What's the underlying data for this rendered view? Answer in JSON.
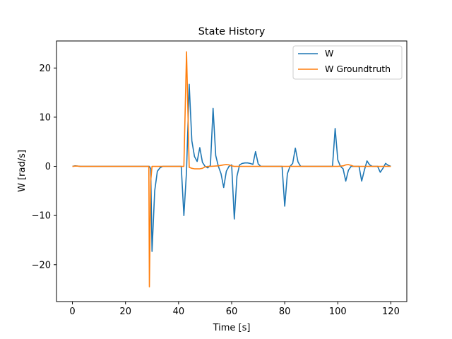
{
  "chart_data": {
    "type": "line",
    "title": "State History",
    "xlabel": "Time [s]",
    "ylabel": "W [rad/s]",
    "xlim": [
      -6,
      126
    ],
    "ylim": [
      -27.5,
      25.5
    ],
    "xticks": [
      0,
      20,
      40,
      60,
      80,
      100,
      120
    ],
    "yticks": [
      -20,
      -10,
      0,
      10,
      20
    ],
    "xtick_labels": [
      "0",
      "20",
      "40",
      "60",
      "80",
      "100",
      "120"
    ],
    "ytick_labels": [
      "−20",
      "−10",
      "0",
      "10",
      "20"
    ],
    "grid": false,
    "legend_position": "top-right",
    "series": [
      {
        "name": "W",
        "color": "#1f77b4",
        "points": [
          [
            0,
            0
          ],
          [
            1,
            0.1
          ],
          [
            2,
            0.05
          ],
          [
            3,
            0
          ],
          [
            10,
            0
          ],
          [
            20,
            0
          ],
          [
            28,
            0
          ],
          [
            29,
            0
          ],
          [
            29.5,
            -0.5
          ],
          [
            30,
            -17.3
          ],
          [
            31,
            -5
          ],
          [
            32,
            -1
          ],
          [
            33,
            -0.3
          ],
          [
            34,
            0
          ],
          [
            41,
            0
          ],
          [
            42,
            -10
          ],
          [
            43,
            -1
          ],
          [
            44,
            16.7
          ],
          [
            45,
            5.2
          ],
          [
            46,
            2
          ],
          [
            47,
            1
          ],
          [
            48,
            3.8
          ],
          [
            49,
            0.8
          ],
          [
            50,
            0
          ],
          [
            51,
            -0.3
          ],
          [
            52,
            0.2
          ],
          [
            53,
            11.8
          ],
          [
            54,
            2.2
          ],
          [
            55,
            0
          ],
          [
            56,
            -1.5
          ],
          [
            57,
            -4.3
          ],
          [
            58,
            -1
          ],
          [
            59,
            0
          ],
          [
            60,
            0.3
          ],
          [
            61,
            -10.7
          ],
          [
            62,
            -2
          ],
          [
            63,
            0.3
          ],
          [
            64,
            0.6
          ],
          [
            65,
            0.7
          ],
          [
            66,
            0.7
          ],
          [
            67,
            0.6
          ],
          [
            68,
            0.4
          ],
          [
            69,
            3
          ],
          [
            70,
            0.5
          ],
          [
            71,
            0
          ],
          [
            79,
            0
          ],
          [
            80,
            -8.1
          ],
          [
            81,
            -1.5
          ],
          [
            82,
            0
          ],
          [
            83,
            0.6
          ],
          [
            84,
            3.7
          ],
          [
            85,
            0.9
          ],
          [
            86,
            0
          ],
          [
            98,
            0
          ],
          [
            99,
            7.7
          ],
          [
            100,
            1.3
          ],
          [
            101,
            0
          ],
          [
            102,
            -0.5
          ],
          [
            103,
            -3
          ],
          [
            104,
            -0.8
          ],
          [
            105,
            0
          ],
          [
            106,
            0
          ],
          [
            108,
            0
          ],
          [
            109,
            -3
          ],
          [
            110,
            -0.8
          ],
          [
            111,
            1.1
          ],
          [
            112,
            0.3
          ],
          [
            113,
            0
          ],
          [
            115,
            0
          ],
          [
            116,
            -1.2
          ],
          [
            117,
            -0.4
          ],
          [
            118,
            0.6
          ],
          [
            119,
            0.2
          ],
          [
            120,
            0
          ]
        ]
      },
      {
        "name": "W Groundtruth",
        "color": "#ff7f0e",
        "points": [
          [
            0,
            0
          ],
          [
            1,
            0.05
          ],
          [
            2,
            0.05
          ],
          [
            3,
            0
          ],
          [
            10,
            0
          ],
          [
            20,
            0
          ],
          [
            28,
            0
          ],
          [
            28.8,
            0
          ],
          [
            29,
            -24.5
          ],
          [
            29.5,
            -3
          ],
          [
            30,
            0
          ],
          [
            40,
            0
          ],
          [
            42,
            0
          ],
          [
            43,
            23.3
          ],
          [
            44,
            -0.2
          ],
          [
            45,
            -0.4
          ],
          [
            46,
            -0.5
          ],
          [
            47,
            -0.5
          ],
          [
            48,
            -0.5
          ],
          [
            49,
            -0.4
          ],
          [
            50,
            -0.1
          ],
          [
            51,
            0
          ],
          [
            52,
            0
          ],
          [
            55,
            0.1
          ],
          [
            57,
            0.3
          ],
          [
            58,
            0.35
          ],
          [
            59,
            0.3
          ],
          [
            60,
            0.1
          ],
          [
            61,
            0
          ],
          [
            63,
            0
          ],
          [
            65,
            0
          ],
          [
            67,
            0
          ],
          [
            70,
            0
          ],
          [
            80,
            0
          ],
          [
            90,
            0
          ],
          [
            100,
            0
          ],
          [
            102,
            0.1
          ],
          [
            103,
            0.3
          ],
          [
            104,
            0.35
          ],
          [
            105,
            0.2
          ],
          [
            106,
            0
          ],
          [
            110,
            0
          ],
          [
            115,
            0
          ],
          [
            120,
            0
          ]
        ]
      }
    ]
  }
}
